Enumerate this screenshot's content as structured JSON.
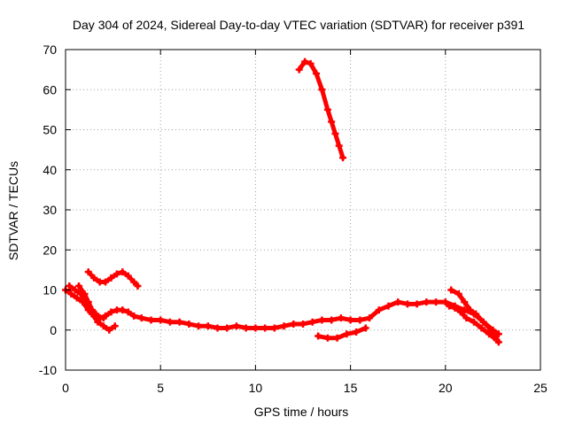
{
  "chart_data": {
    "type": "scatter",
    "title": "Day 304 of 2024, Sidereal Day-to-day VTEC variation (SDTVAR) for receiver p391",
    "xlabel": "GPS time / hours",
    "ylabel": "SDTVAR / TECUs",
    "xlim": [
      0,
      25
    ],
    "ylim": [
      -10,
      70
    ],
    "xticks": [
      0,
      5,
      10,
      15,
      20,
      25
    ],
    "yticks": [
      -10,
      0,
      10,
      20,
      30,
      40,
      50,
      60,
      70
    ],
    "xtick_labels": [
      "0",
      "5",
      "10",
      "15",
      "20",
      "25"
    ],
    "ytick_labels": [
      "-10",
      "0",
      "10",
      "20",
      "30",
      "40",
      "50",
      "60",
      "70"
    ],
    "grid": true,
    "marker": "plus",
    "color": "#ff0000",
    "series": [
      {
        "name": "main-low",
        "x": [
          0.0,
          0.3,
          0.6,
          0.9,
          1.2,
          1.5,
          1.8,
          2.1,
          2.4,
          2.7,
          3.0,
          3.3,
          3.6,
          4.0,
          4.5,
          5.0,
          5.5,
          6.0,
          6.5,
          7.0,
          7.5,
          8.0,
          8.5,
          9.0,
          9.5,
          10.0,
          10.5,
          11.0,
          11.5,
          12.0,
          12.5,
          13.0,
          13.5,
          14.0,
          14.5,
          15.0,
          15.5,
          16.0,
          16.5,
          17.0,
          17.5,
          18.0,
          18.5,
          19.0,
          19.5,
          20.0,
          20.5,
          21.0,
          21.5,
          22.0,
          22.5,
          22.8
        ],
        "y": [
          10,
          9,
          8,
          7,
          5,
          3.5,
          3,
          3.5,
          4.5,
          5,
          5,
          4.5,
          3.5,
          3,
          2.5,
          2.5,
          2,
          2,
          1.5,
          1,
          1,
          0.5,
          0.5,
          1,
          0.5,
          0.5,
          0.5,
          0.5,
          1,
          1.5,
          1.5,
          2,
          2.5,
          2.5,
          3,
          2.5,
          2.5,
          3,
          5,
          6,
          7,
          6.5,
          6.5,
          7,
          7,
          7,
          6,
          5,
          4,
          2,
          0,
          -1
        ]
      },
      {
        "name": "early-dip",
        "x": [
          0.2,
          0.5,
          0.8,
          1.1,
          1.4,
          1.7,
          2.0,
          2.3,
          2.6
        ],
        "y": [
          11,
          10,
          9,
          7,
          4,
          2,
          1,
          0,
          1
        ]
      },
      {
        "name": "early-dip-2",
        "x": [
          0.7,
          1.0,
          1.2,
          1.4,
          1.6,
          1.8,
          2.0
        ],
        "y": [
          11,
          9,
          7,
          5,
          4,
          3,
          3
        ]
      },
      {
        "name": "upper-wave",
        "x": [
          1.2,
          1.5,
          1.8,
          2.1,
          2.4,
          2.7,
          3.0,
          3.3,
          3.6,
          3.8
        ],
        "y": [
          14.5,
          13,
          12,
          12,
          13,
          14,
          14.5,
          13.5,
          12,
          11
        ]
      },
      {
        "name": "high-arc",
        "x": [
          12.3,
          12.6,
          12.9,
          13.2,
          13.5,
          13.8,
          14.0,
          14.2,
          14.4,
          14.6
        ],
        "y": [
          65,
          67,
          66.5,
          64,
          60,
          55,
          52,
          49,
          46,
          43
        ]
      },
      {
        "name": "mid-dip",
        "x": [
          13.3,
          13.8,
          14.3,
          14.8,
          15.3,
          15.8
        ],
        "y": [
          -1.5,
          -2,
          -2,
          -1,
          -0.5,
          0.5
        ]
      },
      {
        "name": "late-branch",
        "x": [
          20.3,
          20.7,
          21.0,
          21.3,
          21.6,
          22.0,
          22.4,
          22.8
        ],
        "y": [
          10,
          9,
          7,
          5,
          4,
          2,
          0,
          -3
        ]
      },
      {
        "name": "late-branch-2",
        "x": [
          20.2,
          20.5,
          20.8,
          21.1,
          21.5,
          21.9,
          22.3,
          22.7
        ],
        "y": [
          6,
          5.5,
          4.5,
          3,
          2,
          0.5,
          -1,
          -2.5
        ]
      }
    ]
  }
}
